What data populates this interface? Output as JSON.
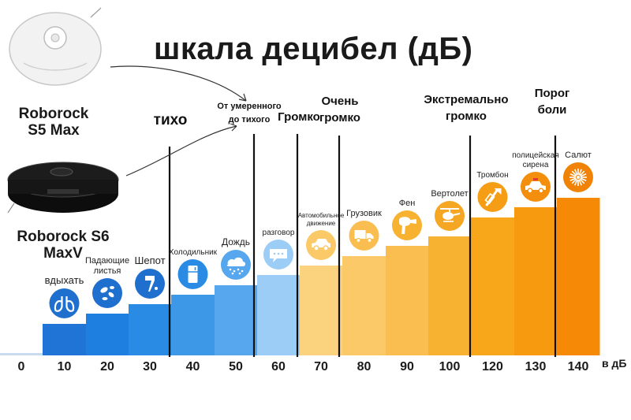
{
  "title": "шкала децибел (дБ)",
  "robots": [
    {
      "name_line1": "Roborock",
      "name_line2": "S5 Max",
      "body_color": "#f2f2f2"
    },
    {
      "name_line1": "Roborock S6",
      "name_line2": "MaxV",
      "body_color": "#1c1c1c"
    }
  ],
  "categories": [
    {
      "label": "тихо",
      "lines": [
        "тихо"
      ]
    },
    {
      "label": "От умеренного до тихого",
      "lines": [
        "От умеренного",
        "до тихого"
      ]
    },
    {
      "label": "Громко",
      "lines": [
        "Громко"
      ]
    },
    {
      "label": "Очень громко",
      "lines": [
        "Очень",
        "громко"
      ]
    },
    {
      "label": "Экстремально громко",
      "lines": [
        "Экстремально",
        "громко"
      ]
    },
    {
      "label": "Порог боли",
      "lines": [
        "Порог",
        "боли"
      ]
    }
  ],
  "chart_data": {
    "type": "bar",
    "title": "шкала децибел (дБ)",
    "unit": "в дБ",
    "x": [
      0,
      10,
      20,
      30,
      40,
      50,
      60,
      70,
      80,
      90,
      100,
      120,
      130,
      140
    ],
    "tick_labels": [
      "0",
      "10",
      "20",
      "30",
      "40",
      "50",
      "60",
      "70",
      "80",
      "90",
      "100",
      "120",
      "130",
      "140"
    ],
    "values": [
      0,
      10,
      20,
      30,
      40,
      50,
      60,
      70,
      80,
      90,
      100,
      120,
      130,
      140
    ],
    "sounds": [
      {
        "label": "",
        "icon": ""
      },
      {
        "label": "вдыхать",
        "icon": "lungs-icon"
      },
      {
        "label": "Падающие листья",
        "icon": "leaves-icon"
      },
      {
        "label": "Шепот",
        "icon": "whisper-icon"
      },
      {
        "label": "Холодильник",
        "icon": "fridge-icon"
      },
      {
        "label": "Дождь",
        "icon": "rain-cloud-icon"
      },
      {
        "label": "разговор",
        "icon": "speech-bubble-icon"
      },
      {
        "label": "Автомобильное движение",
        "icon": "car-icon"
      },
      {
        "label": "Грузовик",
        "icon": "truck-icon"
      },
      {
        "label": "Фен",
        "icon": "hair-dryer-icon"
      },
      {
        "label": "Вертолет",
        "icon": "helicopter-icon"
      },
      {
        "label": "Тромбон",
        "icon": "trombone-icon"
      },
      {
        "label": "полицейская сирена",
        "icon": "police-car-icon"
      },
      {
        "label": "Салют",
        "icon": "fireworks-icon"
      }
    ],
    "colors": [
      "#c9dcef",
      "#1f74d6",
      "#1f7fe0",
      "#2a8be5",
      "#3d98e8",
      "#56a7ee",
      "#9ccdf6",
      "#fbd27e",
      "#fbc968",
      "#f9bd50",
      "#f8b231",
      "#f9a71a",
      "#f89a10",
      "#f68a07"
    ],
    "icon_colors": [
      "#c9dcef",
      "#1f6fcf",
      "#1f6fcf",
      "#1f6fcf",
      "#2a8be5",
      "#56a7ee",
      "#9ccdf6",
      "#fbc968",
      "#f9bd50",
      "#f8b231",
      "#f5a623",
      "#f59d15",
      "#f38f0c",
      "#f08306"
    ],
    "ylim": [
      0,
      140
    ]
  }
}
